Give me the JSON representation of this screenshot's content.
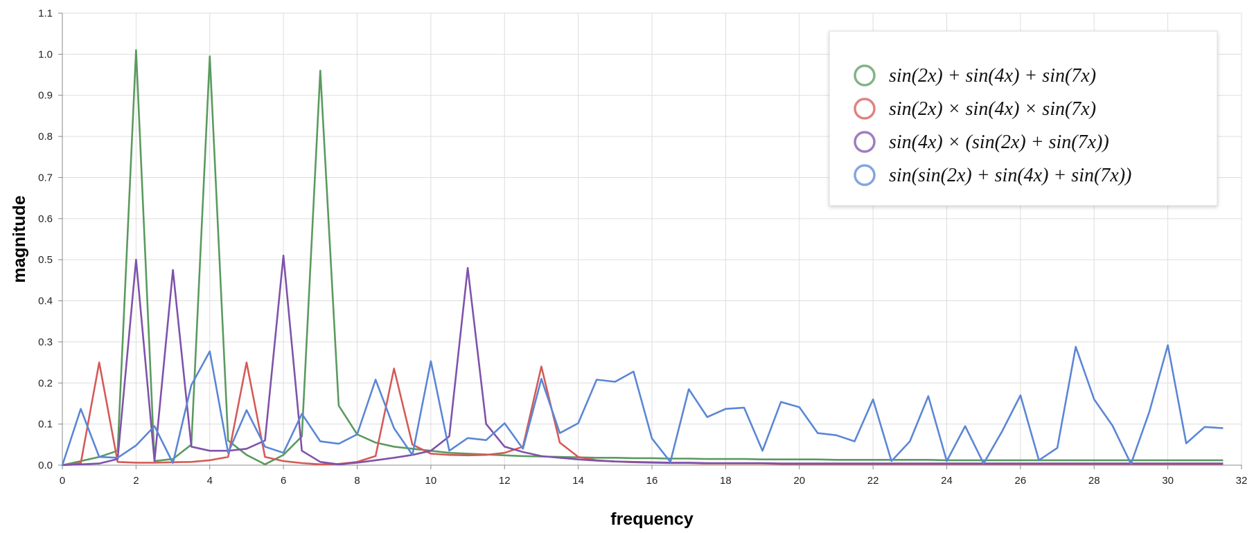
{
  "chart_data": {
    "type": "line",
    "xlabel": "frequency",
    "ylabel": "magnitude",
    "xlim": [
      0,
      32
    ],
    "ylim": [
      0,
      1.1
    ],
    "xticks": [
      "0",
      "2",
      "4",
      "6",
      "8",
      "10",
      "12",
      "14",
      "16",
      "18",
      "20",
      "22",
      "24",
      "26",
      "28",
      "30",
      "32"
    ],
    "yticks": [
      "0.0",
      "0.1",
      "0.2",
      "0.3",
      "0.4",
      "0.5",
      "0.6",
      "0.7",
      "0.8",
      "0.9",
      "1.0",
      "1.1"
    ],
    "grid": true,
    "legend_position": "top-right",
    "x": [
      0,
      0.5,
      1,
      1.5,
      2,
      2.5,
      3,
      3.5,
      4,
      4.5,
      5,
      5.5,
      6,
      6.5,
      7,
      7.5,
      8,
      8.5,
      9,
      9.5,
      10,
      10.5,
      11,
      11.5,
      12,
      12.5,
      13,
      13.5,
      14,
      14.5,
      15,
      15.5,
      16,
      16.5,
      17,
      17.5,
      18,
      18.5,
      19,
      19.5,
      20,
      20.5,
      21,
      21.5,
      22,
      22.5,
      23,
      23.5,
      24,
      24.5,
      25,
      25.5,
      26,
      26.5,
      27,
      27.5,
      28,
      28.5,
      29,
      29.5,
      30,
      30.5,
      31,
      31.5
    ],
    "series": [
      {
        "name": "sin(2x) + sin(4x) + sin(7x)",
        "color": "#5a9a5e",
        "values": [
          0,
          0.01,
          0.02,
          0.035,
          1.01,
          0.01,
          0.015,
          0.05,
          0.995,
          0.06,
          0.025,
          0.002,
          0.025,
          0.07,
          0.96,
          0.145,
          0.075,
          0.055,
          0.045,
          0.04,
          0.035,
          0.03,
          0.028,
          0.026,
          0.024,
          0.022,
          0.021,
          0.02,
          0.019,
          0.018,
          0.018,
          0.017,
          0.017,
          0.016,
          0.016,
          0.015,
          0.015,
          0.015,
          0.014,
          0.014,
          0.014,
          0.014,
          0.013,
          0.013,
          0.013,
          0.013,
          0.013,
          0.013,
          0.012,
          0.012,
          0.012,
          0.012,
          0.012,
          0.012,
          0.012,
          0.012,
          0.012,
          0.012,
          0.012,
          0.012,
          0.012,
          0.012,
          0.012,
          0.012
        ]
      },
      {
        "name": "sin(2x) × sin(4x) × sin(7x)",
        "color": "#d45a57",
        "values": [
          0,
          0.005,
          0.25,
          0.008,
          0.006,
          0.006,
          0.007,
          0.008,
          0.012,
          0.02,
          0.25,
          0.02,
          0.01,
          0.005,
          0.002,
          0.003,
          0.008,
          0.022,
          0.235,
          0.05,
          0.028,
          0.025,
          0.024,
          0.025,
          0.03,
          0.045,
          0.24,
          0.055,
          0.02,
          0.012,
          0.009,
          0.007,
          0.006,
          0.005,
          0.005,
          0.004,
          0.004,
          0.004,
          0.004,
          0.003,
          0.003,
          0.003,
          0.003,
          0.003,
          0.003,
          0.003,
          0.003,
          0.003,
          0.003,
          0.003,
          0.003,
          0.003,
          0.003,
          0.003,
          0.003,
          0.003,
          0.003,
          0.003,
          0.003,
          0.003,
          0.003,
          0.003,
          0.003,
          0.003
        ]
      },
      {
        "name": "sin(4x) × (sin(2x) + sin(7x))",
        "color": "#7f52aa",
        "values": [
          0,
          0.002,
          0.004,
          0.015,
          0.5,
          0.01,
          0.475,
          0.045,
          0.035,
          0.035,
          0.04,
          0.06,
          0.51,
          0.035,
          0.008,
          0.002,
          0.006,
          0.012,
          0.018,
          0.025,
          0.035,
          0.07,
          0.48,
          0.1,
          0.045,
          0.032,
          0.022,
          0.018,
          0.014,
          0.011,
          0.009,
          0.008,
          0.007,
          0.006,
          0.006,
          0.005,
          0.005,
          0.005,
          0.005,
          0.004,
          0.004,
          0.004,
          0.004,
          0.004,
          0.004,
          0.004,
          0.004,
          0.004,
          0.004,
          0.004,
          0.004,
          0.004,
          0.004,
          0.004,
          0.004,
          0.004,
          0.004,
          0.004,
          0.004,
          0.004,
          0.004,
          0.004,
          0.004,
          0.004
        ]
      },
      {
        "name": "sin(sin(2x) + sin(4x) + sin(7x))",
        "color": "#5b86d6",
        "values": [
          0,
          0.137,
          0.02,
          0.018,
          0.048,
          0.095,
          0.005,
          0.195,
          0.277,
          0.03,
          0.134,
          0.045,
          0.03,
          0.125,
          0.058,
          0.052,
          0.075,
          0.208,
          0.09,
          0.025,
          0.253,
          0.035,
          0.066,
          0.061,
          0.102,
          0.04,
          0.21,
          0.078,
          0.102,
          0.208,
          0.203,
          0.228,
          0.065,
          0.008,
          0.185,
          0.117,
          0.137,
          0.14,
          0.035,
          0.154,
          0.141,
          0.078,
          0.073,
          0.058,
          0.16,
          0.01,
          0.058,
          0.168,
          0.01,
          0.095,
          0.004,
          0.082,
          0.17,
          0.012,
          0.042,
          0.288,
          0.16,
          0.096,
          0.003,
          0.13,
          0.292,
          0.053,
          0.093,
          0.09
        ]
      }
    ]
  },
  "legend": {
    "items": [
      {
        "label": "sin(2x) + sin(4x) + sin(7x)"
      },
      {
        "label": "sin(2x) × sin(4x) × sin(7x)"
      },
      {
        "label": "sin(4x) × (sin(2x) + sin(7x))"
      },
      {
        "label": "sin(sin(2x) + sin(4x) + sin(7x))"
      }
    ]
  }
}
